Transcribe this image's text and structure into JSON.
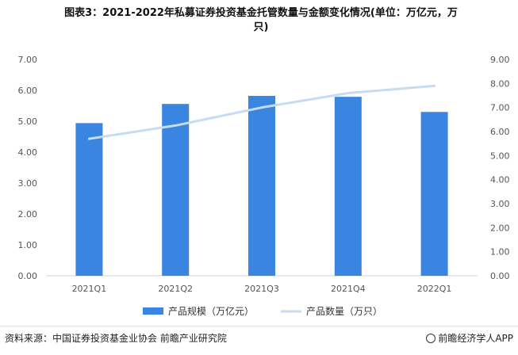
{
  "title_line1": "图表3：2021-2022年私募证券投资基金托管数量与金额变化情况(单位：万亿元，万",
  "title_line2": "只)",
  "source": "资料来源：中国证券投资基金业协会 前瞻产业研究院",
  "brand": "前瞻经济学人APP",
  "colors": {
    "bar": "#3a85e0",
    "line": "#c5dcf2",
    "axis_text": "#555555",
    "grid": "#e6e6e6"
  },
  "chart_data": {
    "type": "bar",
    "categories": [
      "2021Q1",
      "2021Q2",
      "2021Q3",
      "2021Q4",
      "2022Q1"
    ],
    "series": [
      {
        "name": "产品规模（万亿元）",
        "type": "bar",
        "axis": "left",
        "values": [
          4.94,
          5.56,
          5.82,
          5.79,
          5.3
        ]
      },
      {
        "name": "产品数量（万只）",
        "type": "line",
        "axis": "right",
        "values": [
          5.7,
          6.25,
          7.0,
          7.6,
          7.9
        ]
      }
    ],
    "y_left": {
      "min": 0,
      "max": 7,
      "ticks": [
        "0.00",
        "1.00",
        "2.00",
        "3.00",
        "4.00",
        "5.00",
        "6.00",
        "7.00"
      ]
    },
    "y_right": {
      "min": 0,
      "max": 9,
      "ticks": [
        "0.00",
        "1.00",
        "2.00",
        "3.00",
        "4.00",
        "5.00",
        "6.00",
        "7.00",
        "8.00",
        "9.00"
      ]
    },
    "legend": [
      "产品规模（万亿元）",
      "产品数量（万只）"
    ],
    "legend_position": "bottom"
  }
}
